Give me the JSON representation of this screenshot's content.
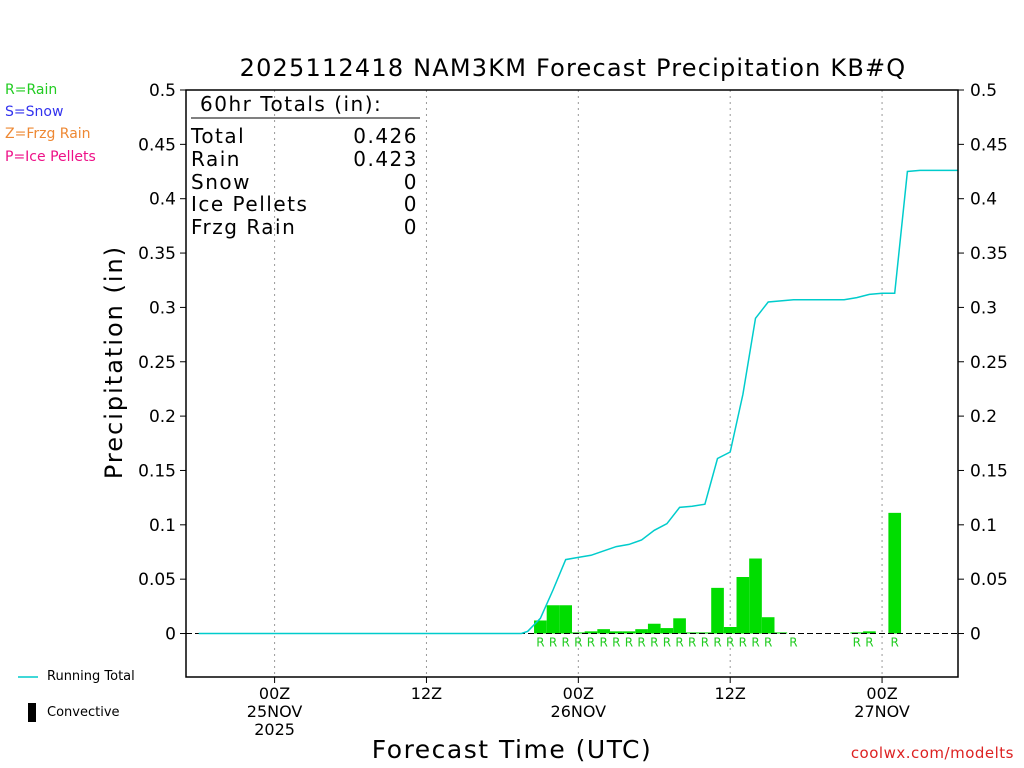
{
  "title": "2025112418 NAM3KM Forecast Precipitation KB#Q",
  "credit": "coolwx.com/modelts",
  "legend": [
    {
      "label": "R=Rain",
      "color": "#22cc22"
    },
    {
      "label": "S=Snow",
      "color": "#3333ee"
    },
    {
      "label": "Z=Frzg Rain",
      "color": "#ee8833"
    },
    {
      "label": "P=Ice Pellets",
      "color": "#ee1188"
    }
  ],
  "foot_legend": {
    "running_total": "Running Total",
    "convective": "Convective"
  },
  "colors": {
    "bar": "#00dd00",
    "line": "#00cccc",
    "rain_letter": "#22cc22",
    "grid": "#999999"
  },
  "totals": {
    "heading": "60hr Totals (in):",
    "rows": [
      {
        "label": "Total",
        "value": "0.426"
      },
      {
        "label": "Rain",
        "value": "0.423"
      },
      {
        "label": "Snow",
        "value": "0"
      },
      {
        "label": "Ice Pellets",
        "value": "0"
      },
      {
        "label": "Frzg Rain",
        "value": "0"
      }
    ]
  },
  "chart_data": {
    "type": "bar",
    "title": "2025112418 NAM3KM Forecast Precipitation KB#Q",
    "xlabel": "Forecast Time (UTC)",
    "ylabel": "Precipitation (in)",
    "ylim": [
      -0.04,
      0.5
    ],
    "yticks": [
      0,
      0.05,
      0.1,
      0.15,
      0.2,
      0.25,
      0.3,
      0.35,
      0.4,
      0.45,
      0.5
    ],
    "ytick_labels": [
      "0",
      "0.05",
      "0.1",
      "0.15",
      "0.2",
      "0.25",
      "0.3",
      "0.35",
      "0.4",
      "0.45",
      "0.5"
    ],
    "x_units": "forecast hour",
    "xlim": [
      -1,
      60
    ],
    "x_ticks": [
      {
        "hour": 6,
        "lines": [
          "00Z",
          "25NOV",
          "2025"
        ]
      },
      {
        "hour": 18,
        "lines": [
          "12Z"
        ]
      },
      {
        "hour": 30,
        "lines": [
          "00Z",
          "26NOV"
        ]
      },
      {
        "hour": 42,
        "lines": [
          "12Z"
        ]
      },
      {
        "hour": 54,
        "lines": [
          "00Z",
          "27NOV"
        ]
      }
    ],
    "series": [
      {
        "name": "Hourly Precipitation",
        "kind": "bar",
        "hours": [
          27,
          28,
          29,
          30,
          31,
          32,
          33,
          34,
          35,
          36,
          37,
          38,
          39,
          40,
          41,
          42,
          43,
          44,
          45,
          46,
          52,
          53,
          55
        ],
        "values": [
          0.012,
          0.026,
          0.026,
          0.001,
          0.002,
          0.004,
          0.002,
          0.002,
          0.004,
          0.009,
          0.005,
          0.014,
          0.001,
          0.001,
          0.042,
          0.006,
          0.052,
          0.069,
          0.015,
          0.001,
          0.001,
          0.002,
          0.111
        ],
        "ptype": [
          "R",
          "R",
          "R",
          "R",
          "R",
          "R",
          "R",
          "R",
          "R",
          "R",
          "R",
          "R",
          "R",
          "R",
          "R",
          "R",
          "R",
          "R",
          "R",
          "R",
          "R",
          "R",
          "R"
        ],
        "letter_hours": [
          27,
          28,
          29,
          30,
          31,
          32,
          33,
          34,
          35,
          36,
          37,
          38,
          39,
          40,
          41,
          42,
          43,
          44,
          45,
          47,
          52,
          53,
          55
        ]
      },
      {
        "name": "Running Total",
        "kind": "line",
        "hours": [
          0,
          25.5,
          26,
          27,
          28,
          29,
          30,
          31,
          32,
          33,
          34,
          35,
          36,
          37,
          38,
          39,
          40,
          41,
          42,
          43,
          44,
          45,
          46,
          47,
          48,
          49,
          50,
          51,
          52,
          53,
          54,
          55,
          56,
          57,
          58,
          59,
          60
        ],
        "values": [
          0,
          0,
          0.002,
          0.014,
          0.04,
          0.068,
          0.07,
          0.072,
          0.076,
          0.08,
          0.082,
          0.086,
          0.095,
          0.101,
          0.116,
          0.117,
          0.119,
          0.161,
          0.167,
          0.22,
          0.29,
          0.305,
          0.306,
          0.307,
          0.307,
          0.307,
          0.307,
          0.307,
          0.309,
          0.312,
          0.313,
          0.313,
          0.425,
          0.426,
          0.426,
          0.426,
          0.426
        ]
      }
    ]
  }
}
